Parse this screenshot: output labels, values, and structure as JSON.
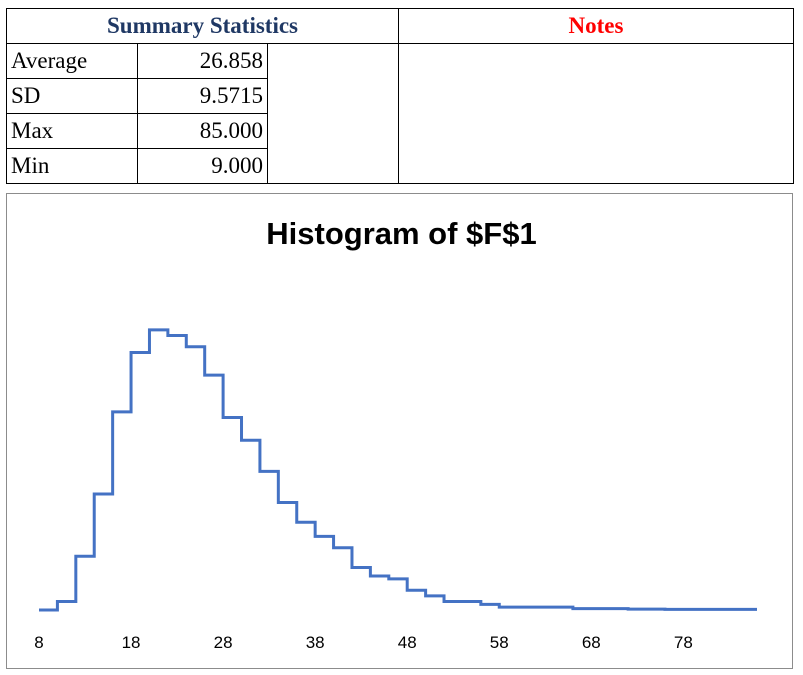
{
  "summary": {
    "header": "Summary Statistics",
    "notes_header": "Notes",
    "rows": [
      {
        "label": "Average",
        "value": "26.858"
      },
      {
        "label": "SD",
        "value": "9.5715"
      },
      {
        "label": "Max",
        "value": "85.000"
      },
      {
        "label": "Min",
        "value": "9.000"
      }
    ]
  },
  "chart_data": {
    "type": "line",
    "title": "Histogram of $F$1",
    "xlabel": "",
    "ylabel": "",
    "line_color": "#4472c4",
    "x_ticks": [
      8,
      18,
      28,
      38,
      48,
      58,
      68,
      78
    ],
    "xlim": [
      8,
      86
    ],
    "ylim": [
      0,
      100
    ],
    "grid": false,
    "legend": "none",
    "series": [
      {
        "bin_edges": [
          8,
          10,
          12,
          14,
          16,
          18,
          20,
          22,
          24,
          26,
          28,
          30,
          32,
          34,
          36,
          38,
          40,
          42,
          44,
          46,
          48,
          50,
          52,
          54,
          56,
          58,
          60,
          62,
          64,
          66,
          68,
          70,
          72,
          74,
          76,
          78,
          80,
          82,
          84,
          86
        ],
        "counts": [
          0,
          3,
          19,
          41,
          70,
          91,
          99,
          97,
          93,
          83,
          68,
          60,
          49,
          38,
          31,
          26,
          22,
          15,
          12,
          11,
          7,
          5,
          3,
          3,
          2,
          1,
          1,
          1,
          1,
          0.5,
          0.5,
          0.5,
          0.3,
          0.3,
          0.2,
          0.2,
          0.2,
          0.2,
          0.2
        ]
      }
    ]
  }
}
